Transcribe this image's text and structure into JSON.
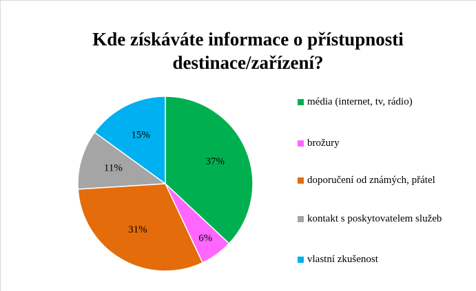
{
  "chart_data": {
    "type": "pie",
    "title": "Kde získáváte informace o přístupnosti destinace/zařízení?",
    "categories": [
      "média (internet, tv, rádio)",
      "brožury",
      "doporučení od známých, přátel",
      "kontakt s poskytovatelem služeb",
      "vlastní zkušenost"
    ],
    "values": [
      37,
      6,
      31,
      11,
      15
    ],
    "value_labels": [
      "37%",
      "6%",
      "31%",
      "11%",
      "15%"
    ],
    "colors": [
      "#00b050",
      "#ff66ff",
      "#e46c0a",
      "#a5a5a5",
      "#00b0f0"
    ],
    "legend": "right"
  }
}
